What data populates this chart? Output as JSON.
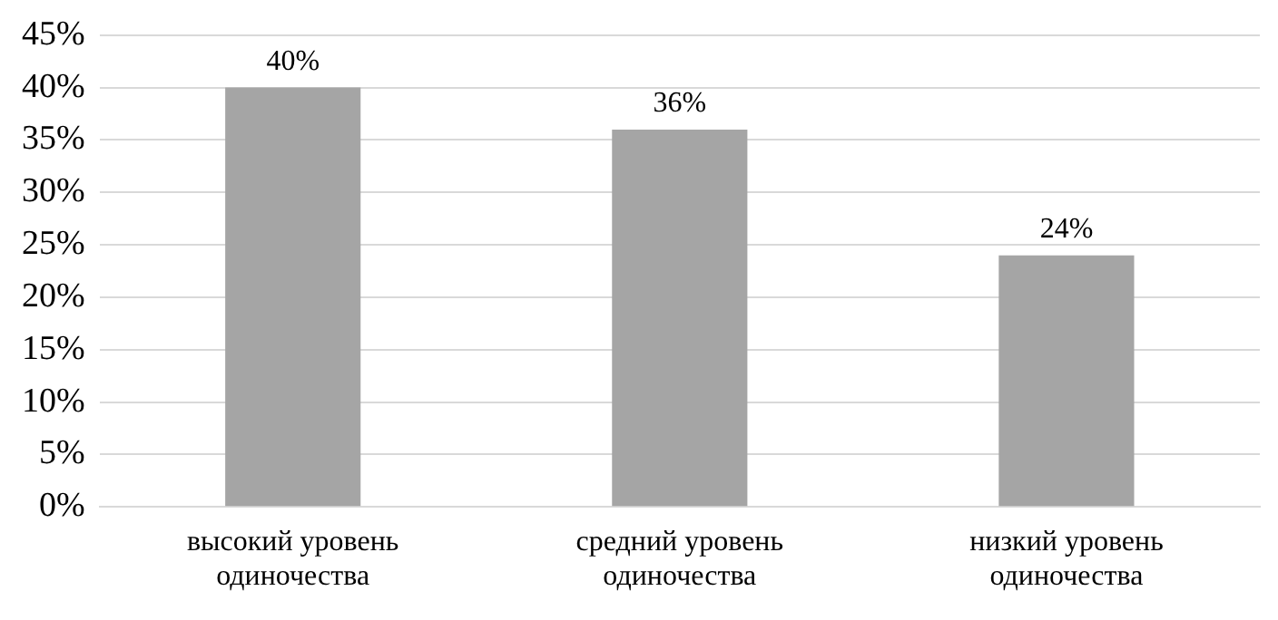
{
  "chart_data": {
    "type": "bar",
    "categories": [
      "высокий уровень одиночества",
      "средний уровень одиночества",
      "низкий уровень одиночества"
    ],
    "values": [
      40,
      36,
      24
    ],
    "color": "#a5a5a5",
    "value_labels": [
      "40%",
      "36%",
      "24%"
    ],
    "ylim": [
      0,
      45
    ],
    "yticks": [
      {
        "value": 0,
        "label": "0%"
      },
      {
        "value": 5,
        "label": "5%"
      },
      {
        "value": 10,
        "label": "10%"
      },
      {
        "value": 15,
        "label": "15%"
      },
      {
        "value": 20,
        "label": "20%"
      },
      {
        "value": 25,
        "label": "25%"
      },
      {
        "value": 30,
        "label": "30%"
      },
      {
        "value": 35,
        "label": "35%"
      },
      {
        "value": 40,
        "label": "40%"
      },
      {
        "value": 45,
        "label": "45%"
      }
    ],
    "grid": "y"
  }
}
